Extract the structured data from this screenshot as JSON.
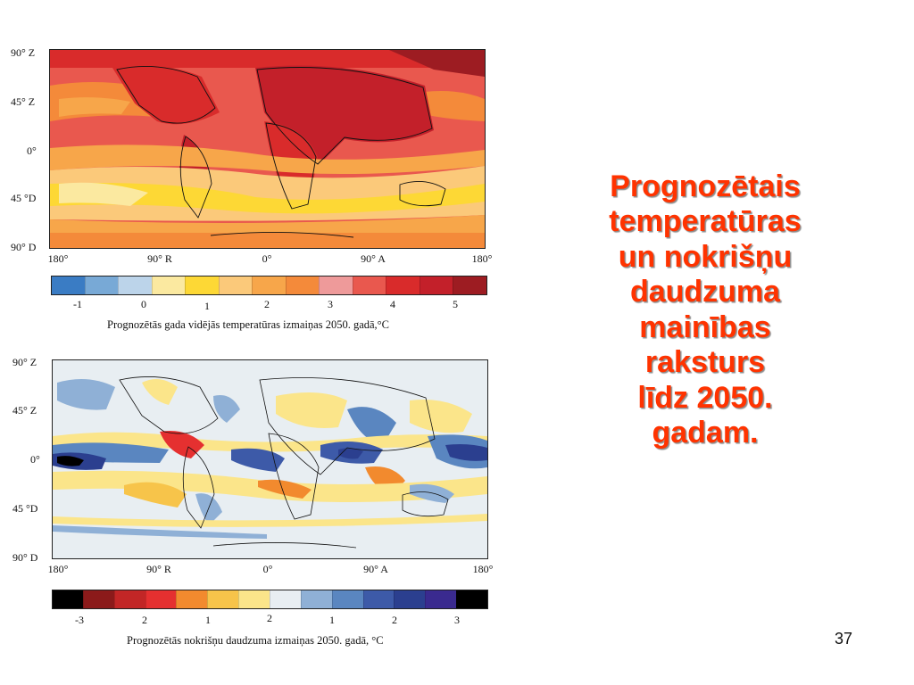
{
  "top_map": {
    "lat_labels": [
      "90° Z",
      "45° Z",
      "0°",
      "45 °D",
      "90° D"
    ],
    "lon_labels": [
      "180°",
      "90° R",
      "0°",
      "90° A",
      "180°"
    ],
    "colorbar": {
      "colors": [
        "#3a7cc4",
        "#78a9d6",
        "#bcd4ea",
        "#fbe9a0",
        "#fdd835",
        "#fbc97a",
        "#f7a64a",
        "#f48a3a",
        "#ee9a9a",
        "#e9584e",
        "#d92b2b",
        "#c3202a",
        "#9d1c22"
      ],
      "ticks": [
        "-1",
        "0",
        "1",
        "2",
        "3",
        "4",
        "5"
      ]
    },
    "caption": "Prognozētās gada vidējās temperatūras izmaiņas 2050. gadā,°C"
  },
  "bottom_map": {
    "lat_labels": [
      "90° Z",
      "45° Z",
      "0°",
      "45 °D",
      "90° D"
    ],
    "lon_labels": [
      "180°",
      "90° R",
      "0°",
      "90° A",
      "180°"
    ],
    "colorbar": {
      "colors": [
        "#000000",
        "#8b1a1a",
        "#c22626",
        "#e53030",
        "#f28a2e",
        "#f7c44a",
        "#fbe58a",
        "#e8eef2",
        "#8fb0d6",
        "#5a86c0",
        "#3d5aa8",
        "#2b3f8f",
        "#3a2a8f",
        "#000000"
      ],
      "ticks": [
        "-3",
        "2",
        "1",
        "2",
        "1",
        "2",
        "3"
      ]
    },
    "caption": "Prognozētās nokrišņu daudzuma izmaiņas 2050. gadā, °C"
  },
  "title_lines": [
    "Prognozētais",
    "temperatūras",
    "un nokrišņu",
    "daudzuma",
    "mainības",
    "raksturs",
    "līdz 2050.",
    "gadam."
  ],
  "page_number": "37"
}
